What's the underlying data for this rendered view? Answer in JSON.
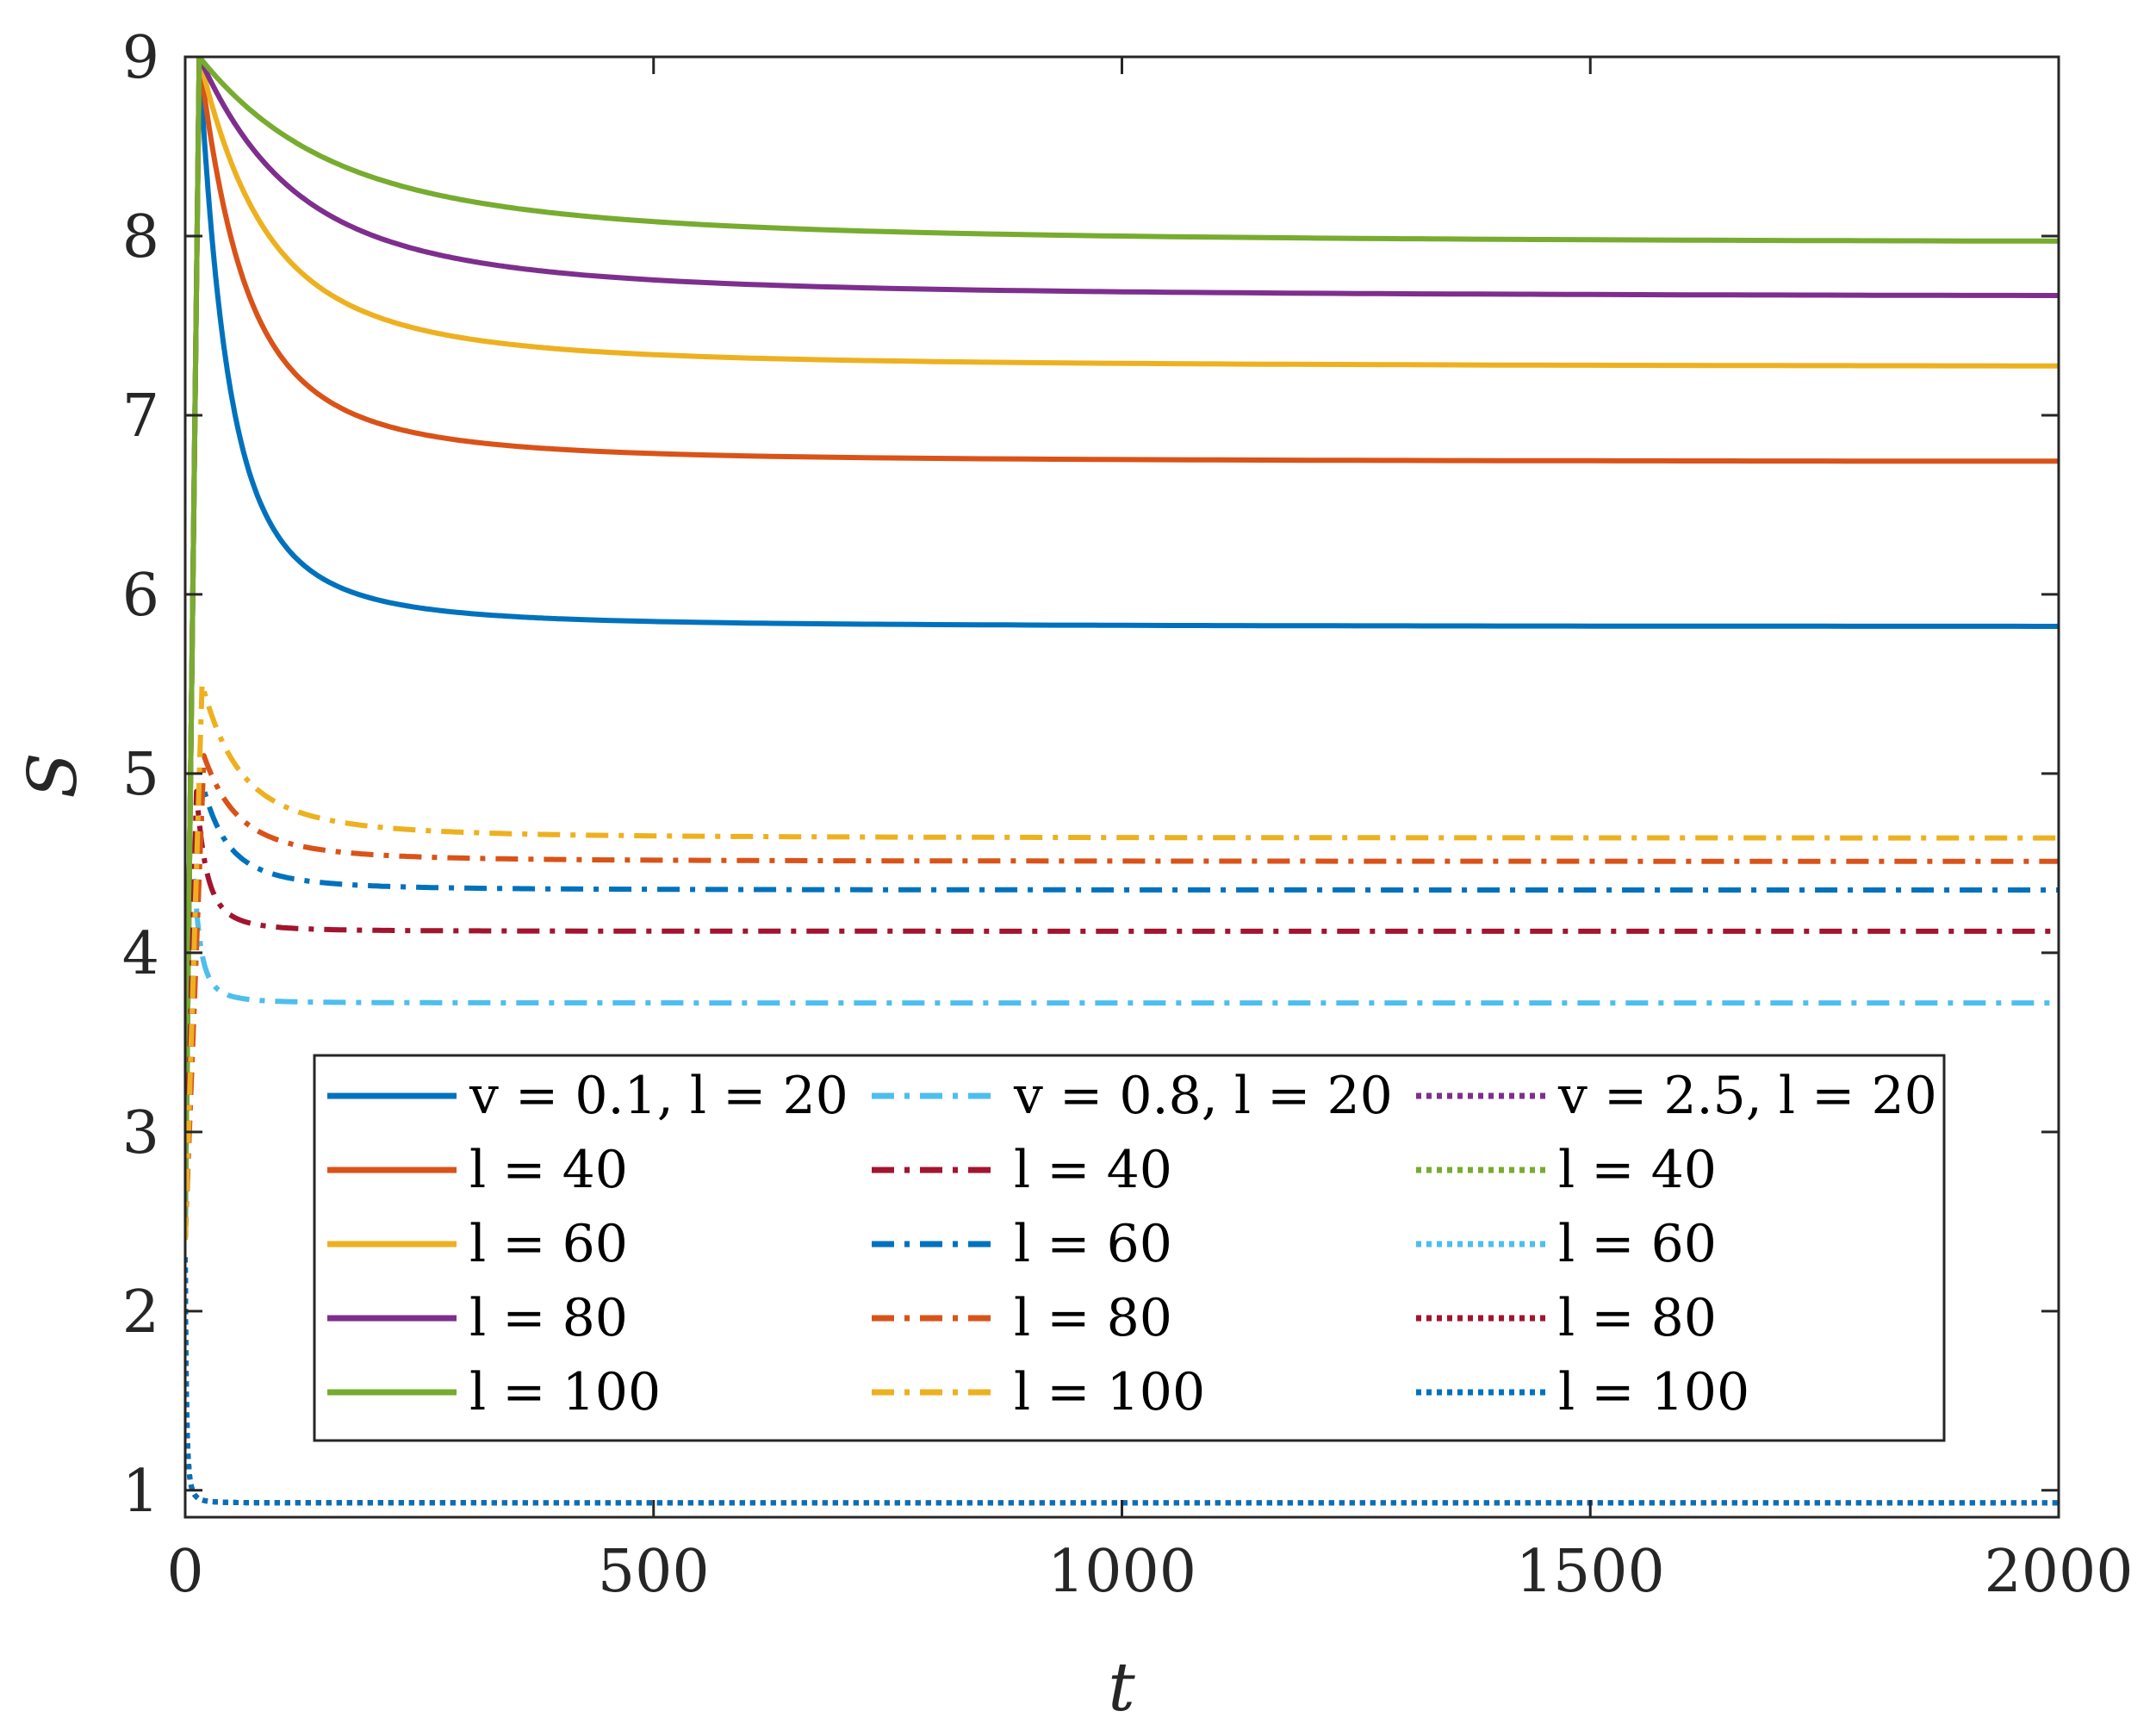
{
  "chart_data": {
    "type": "line",
    "xlabel": "t",
    "ylabel": "S",
    "xlim": [
      0,
      2000
    ],
    "ylim": [
      0.85,
      9
    ],
    "xticks": [
      0,
      500,
      1000,
      1500,
      2000
    ],
    "yticks": [
      1,
      2,
      3,
      4,
      5,
      6,
      7,
      8,
      9
    ],
    "grid": false,
    "legend_placement": "lower-center",
    "legend_columns": 3,
    "series": [
      {
        "group": "v = 0.1",
        "legend_label": "v = 0.1, l = 20",
        "l": 20,
        "style": "solid",
        "color": "#0072BD",
        "start": 2.5,
        "peak_t": 15,
        "peak": 9.0,
        "plateau": 5.82,
        "tau": 35
      },
      {
        "group": "v = 0.1",
        "legend_label": "l = 40",
        "l": 40,
        "style": "solid",
        "color": "#D95319",
        "start": 2.5,
        "peak_t": 15,
        "peak": 9.0,
        "plateau": 6.74,
        "tau": 55
      },
      {
        "group": "v = 0.1",
        "legend_label": "l = 60",
        "l": 60,
        "style": "solid",
        "color": "#EDB120",
        "start": 2.5,
        "peak_t": 15,
        "peak": 9.0,
        "plateau": 7.27,
        "tau": 80
      },
      {
        "group": "v = 0.1",
        "legend_label": "l = 80",
        "l": 80,
        "style": "solid",
        "color": "#7E2F8E",
        "start": 2.5,
        "peak_t": 15,
        "peak": 9.0,
        "plateau": 7.66,
        "tau": 115
      },
      {
        "group": "v = 0.1",
        "legend_label": "l = 100",
        "l": 100,
        "style": "solid",
        "color": "#77AC30",
        "start": 2.5,
        "peak_t": 15,
        "peak": 9.0,
        "plateau": 7.96,
        "tau": 160
      },
      {
        "group": "v = 0.8",
        "legend_label": "v = 0.8, l = 20",
        "l": 20,
        "style": "dashdot",
        "color": "#4DBEEE",
        "start": 2.4,
        "peak_t": 10,
        "peak": 4.4,
        "plateau": 3.72,
        "tau": 8
      },
      {
        "group": "v = 0.8",
        "legend_label": "l = 40",
        "l": 40,
        "style": "dashdot",
        "color": "#A2142F",
        "start": 2.4,
        "peak_t": 12,
        "peak": 4.9,
        "plateau": 4.12,
        "tau": 12
      },
      {
        "group": "v = 0.8",
        "legend_label": "l = 60",
        "l": 60,
        "style": "dashdot",
        "color": "#0072BD",
        "start": 2.4,
        "peak_t": 18,
        "peak": 4.95,
        "plateau": 4.35,
        "tau": 30
      },
      {
        "group": "v = 0.8",
        "legend_label": "l = 80",
        "l": 80,
        "style": "dashdot",
        "color": "#D95319",
        "start": 2.4,
        "peak_t": 20,
        "peak": 5.1,
        "plateau": 4.51,
        "tau": 40
      },
      {
        "group": "v = 0.8",
        "legend_label": "l = 100",
        "l": 100,
        "style": "dashdot",
        "color": "#EDB120",
        "start": 2.4,
        "peak_t": 18,
        "peak": 5.5,
        "plateau": 4.64,
        "tau": 45
      },
      {
        "group": "v = 2.5",
        "legend_label": "v = 2.5, l = 20",
        "l": 20,
        "style": "dotted",
        "color": "#7E2F8E",
        "start": 2.3,
        "peak_t": 0,
        "peak": 2.3,
        "plateau": 0.93,
        "tau": 1.5
      },
      {
        "group": "v = 2.5",
        "legend_label": "l = 40",
        "l": 40,
        "style": "dotted",
        "color": "#77AC30",
        "start": 2.3,
        "peak_t": 0,
        "peak": 2.3,
        "plateau": 0.93,
        "tau": 1.5
      },
      {
        "group": "v = 2.5",
        "legend_label": "l = 60",
        "l": 60,
        "style": "dotted",
        "color": "#4DBEEE",
        "start": 2.3,
        "peak_t": 0,
        "peak": 2.3,
        "plateau": 0.93,
        "tau": 1.5
      },
      {
        "group": "v = 2.5",
        "legend_label": "l = 80",
        "l": 80,
        "style": "dotted",
        "color": "#A2142F",
        "start": 2.3,
        "peak_t": 0,
        "peak": 2.3,
        "plateau": 0.93,
        "tau": 1.5
      },
      {
        "group": "v = 2.5",
        "legend_label": "l = 100",
        "l": 100,
        "style": "dotted",
        "color": "#0072BD",
        "start": 2.3,
        "peak_t": 0,
        "peak": 2.3,
        "plateau": 0.93,
        "tau": 1.5
      }
    ]
  }
}
